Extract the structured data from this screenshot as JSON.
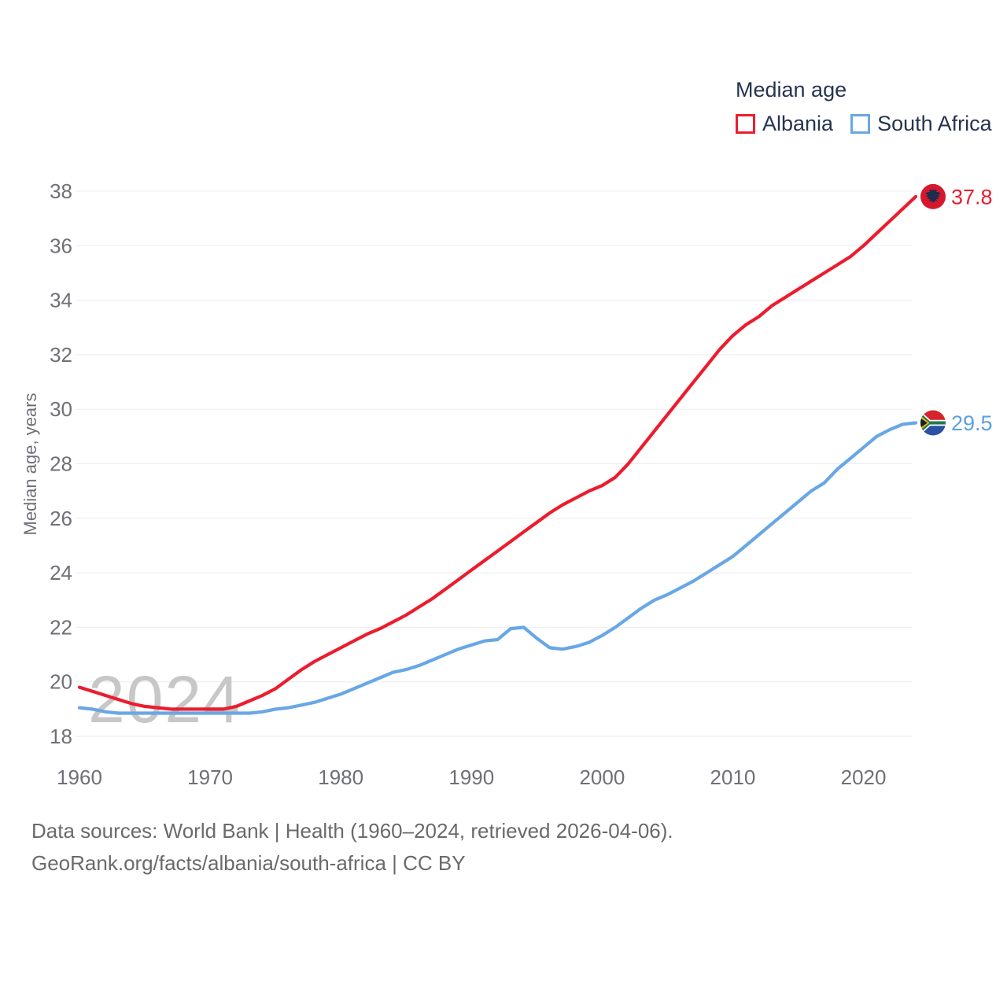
{
  "legend": {
    "title": "Median age",
    "items": [
      {
        "label": "Albania",
        "color": "#ec1c2e"
      },
      {
        "label": "South Africa",
        "color": "#68a7e5"
      }
    ]
  },
  "y_axis": {
    "title": "Median age, years",
    "ticks": [
      18,
      20,
      22,
      24,
      26,
      28,
      30,
      32,
      34,
      36,
      38
    ]
  },
  "x_axis": {
    "ticks": [
      1960,
      1970,
      1980,
      1990,
      2000,
      2010,
      2020
    ]
  },
  "watermark": "2024",
  "footer": {
    "line1": "Data sources: World Bank | Health (1960–2024, retrieved 2026-04-06).",
    "line2": "GeoRank.org/facts/albania/south-africa | CC BY"
  },
  "colors": {
    "albania_line": "#ec1c2e",
    "south_africa_line": "#68a7e5",
    "legend_text": "#263450",
    "axis_text": "#6f7076",
    "gridline": "#ebebeb",
    "watermark": "#c7c7c7",
    "footer_text": "#6a6a6a"
  },
  "chart_data": {
    "type": "line",
    "title": "Median age",
    "ylabel": "Median age, years",
    "ylim": [
      18,
      38
    ],
    "x_range": [
      1960,
      2024
    ],
    "x_step": 1,
    "grid": "horizontal",
    "legend_position": "top-right",
    "series": [
      {
        "name": "Albania",
        "color": "#ec1c2e",
        "end_label": "37.8",
        "end_value": 37.8,
        "flag": "albania-flag-icon",
        "values": [
          19.8,
          19.65,
          19.5,
          19.35,
          19.2,
          19.1,
          19.05,
          19.0,
          19.0,
          19.0,
          19.0,
          19.0,
          19.1,
          19.3,
          19.5,
          19.75,
          20.1,
          20.45,
          20.75,
          21.0,
          21.25,
          21.5,
          21.75,
          21.95,
          22.2,
          22.45,
          22.75,
          23.05,
          23.4,
          23.75,
          24.1,
          24.45,
          24.8,
          25.15,
          25.5,
          25.85,
          26.2,
          26.5,
          26.75,
          27.0,
          27.2,
          27.5,
          28.0,
          28.6,
          29.2,
          29.8,
          30.4,
          31.0,
          31.6,
          32.2,
          32.7,
          33.1,
          33.4,
          33.8,
          34.1,
          34.4,
          34.7,
          35.0,
          35.3,
          35.6,
          36.0,
          36.45,
          36.9,
          37.35,
          37.8
        ]
      },
      {
        "name": "South Africa",
        "color": "#68a7e5",
        "end_label": "29.5",
        "end_value": 29.5,
        "flag": "south-africa-flag-icon",
        "values": [
          19.05,
          19.0,
          18.9,
          18.85,
          18.85,
          18.85,
          18.85,
          18.85,
          18.85,
          18.85,
          18.85,
          18.85,
          18.85,
          18.85,
          18.9,
          19.0,
          19.05,
          19.15,
          19.25,
          19.4,
          19.55,
          19.75,
          19.95,
          20.15,
          20.35,
          20.45,
          20.6,
          20.8,
          21.0,
          21.2,
          21.35,
          21.5,
          21.55,
          21.95,
          22.0,
          21.6,
          21.25,
          21.2,
          21.3,
          21.45,
          21.7,
          22.0,
          22.35,
          22.7,
          23.0,
          23.2,
          23.45,
          23.7,
          24.0,
          24.3,
          24.6,
          25.0,
          25.4,
          25.8,
          26.2,
          26.6,
          27.0,
          27.3,
          27.8,
          28.2,
          28.6,
          29.0,
          29.25,
          29.45,
          29.5
        ]
      }
    ]
  }
}
